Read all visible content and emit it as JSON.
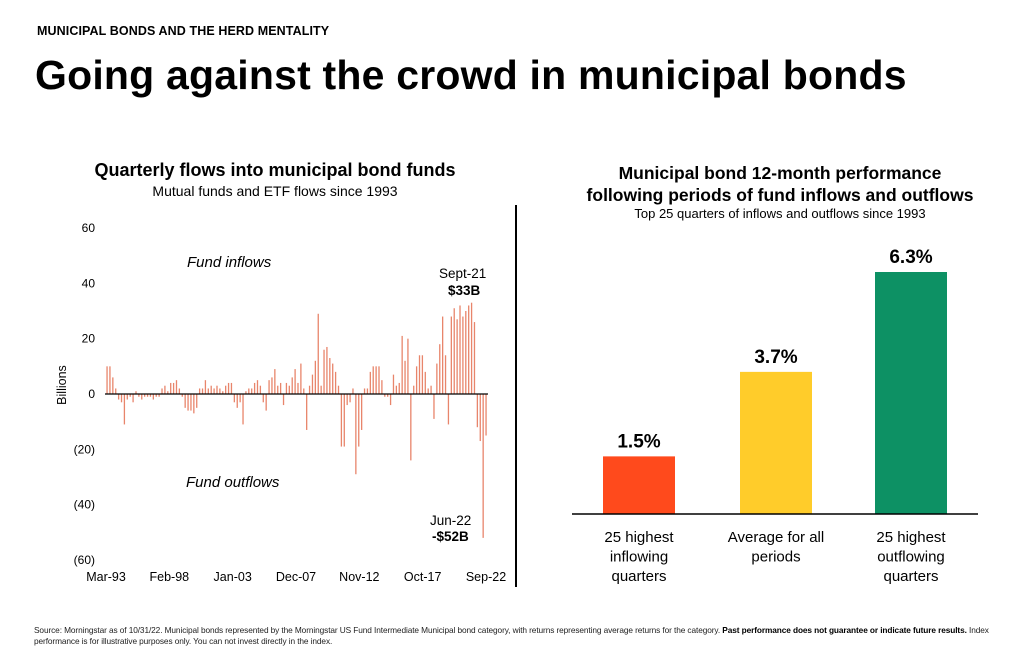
{
  "header": {
    "kicker": "MUNICIPAL BONDS AND THE HERD MENTALITY",
    "title": "Going against the crowd in municipal bonds"
  },
  "footer": {
    "source": "Source: Morningstar as of 10/31/22. Municipal bonds represented by the Morningstar US Fund Intermediate Municipal bond category, with returns representing average returns for the category.",
    "disclaimer": "Past performance does not guarantee or indicate future results.",
    "note": "Index performance is for illustrative purposes only. You can not invest directly in the index."
  },
  "colors": {
    "flow_bar": "#e8856b",
    "red": "#ff4a1c",
    "yellow": "#ffcc2a",
    "green": "#0d9164",
    "divider": "#000000"
  },
  "chart_data": [
    {
      "type": "bar",
      "title": "Quarterly flows into municipal bond funds",
      "subtitle": "Mutual funds and ETF flows since 1993",
      "xlabel": "",
      "ylabel": "Billions",
      "ylim": [
        -60,
        60
      ],
      "yticks": [
        "60",
        "40",
        "20",
        "0",
        "(20)",
        "(40)",
        "(60)"
      ],
      "ytick_values": [
        60,
        40,
        20,
        0,
        -20,
        -40,
        -60
      ],
      "xticks": [
        "Mar-93",
        "Feb-98",
        "Jan-03",
        "Dec-07",
        "Nov-12",
        "Oct-17",
        "Sep-22"
      ],
      "grid": false,
      "annotations": {
        "inflows": "Fund  inflows",
        "outflows": "Fund  outflows",
        "max_date": "Sept-21",
        "max_value": "$33B",
        "min_date": "Jun-22",
        "min_value": "-$52B"
      },
      "values": [
        10,
        10,
        6,
        2,
        -2,
        -3,
        -11,
        -2,
        -1,
        -3,
        1,
        -1,
        -2,
        -1,
        -1,
        -1,
        -2,
        -1,
        -1,
        2,
        3,
        1,
        4,
        4,
        5,
        2,
        -1,
        -5,
        -6,
        -6,
        -7,
        -5,
        2,
        2,
        5,
        2,
        3,
        2,
        3,
        2,
        1,
        3,
        4,
        4,
        -3,
        -5,
        -3,
        -11,
        1,
        2,
        2,
        4,
        5,
        3,
        -3,
        -6,
        5,
        6,
        9,
        3,
        4,
        -4,
        4,
        3,
        6,
        9,
        4,
        11,
        2,
        -13,
        3,
        7,
        12,
        29,
        3,
        16,
        17,
        13,
        11,
        8,
        3,
        -19,
        -19,
        -4,
        -3,
        2,
        -29,
        -19,
        -13,
        2,
        2,
        8,
        10,
        10,
        10,
        5,
        -1,
        -1,
        -4,
        7,
        3,
        4,
        21,
        12,
        20,
        -24,
        3,
        10,
        14,
        14,
        8,
        2,
        3,
        -9,
        11,
        18,
        28,
        14,
        -11,
        28,
        31,
        27,
        32,
        28,
        30,
        32,
        33,
        26,
        -12,
        -17,
        -52,
        -15
      ]
    },
    {
      "type": "bar",
      "title": "Municipal bond 12-month performance following periods of fund inflows and outflows",
      "title_line1": "Municipal bond 12-month performance",
      "title_line2": "following periods of fund inflows and outflows",
      "subtitle": "Top 25 quarters of inflows and outflows since 1993",
      "categories": [
        "25 highest inflowing quarters",
        "Average for all periods",
        "25 highest outflowing quarters"
      ],
      "category_lines": [
        [
          "25 highest",
          "inflowing",
          "quarters"
        ],
        [
          "Average for all",
          "periods"
        ],
        [
          "25 highest",
          "outflowing",
          "quarters"
        ]
      ],
      "values": [
        1.5,
        3.7,
        6.3
      ],
      "value_labels": [
        "1.5%",
        "3.7%",
        "6.3%"
      ],
      "colors": [
        "#ff4a1c",
        "#ffcc2a",
        "#0d9164"
      ],
      "ylim": [
        0,
        6.3
      ],
      "grid": false
    }
  ]
}
